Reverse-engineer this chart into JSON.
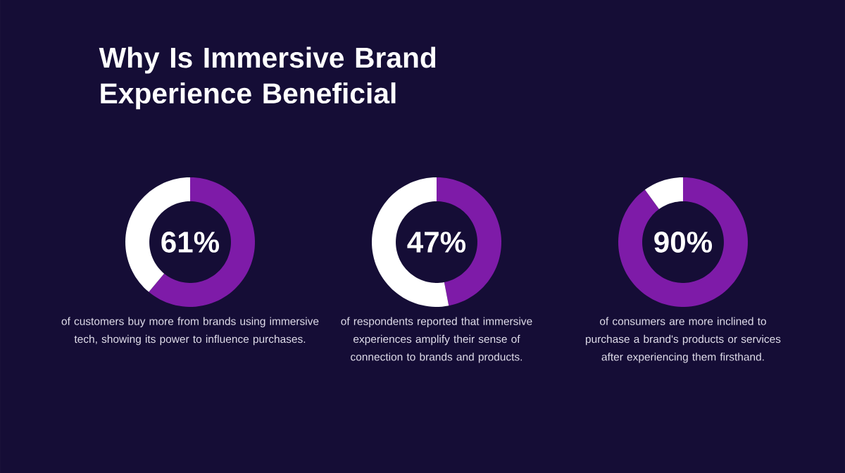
{
  "chart_data": [
    {
      "type": "donut",
      "title": "Why Is Immersive Brand Experience Beneficial",
      "categories": [
        null,
        null
      ],
      "values": [
        61,
        39
      ],
      "colors": [
        "#7e1ba8",
        "#ffffff"
      ],
      "annotations": [
        "61%",
        "of customers buy more from brands using immersive tech, showing its power to influence purchases."
      ]
    },
    {
      "type": "donut",
      "categories": [
        null,
        null
      ],
      "values": [
        47,
        53
      ],
      "colors": [
        "#7e1ba8",
        "#ffffff"
      ],
      "annotations": [
        "47%",
        "of respondents reported that immersive experiences amplify their sense of connection to brands and products."
      ]
    },
    {
      "type": "donut",
      "categories": [
        null,
        null
      ],
      "values": [
        90,
        10
      ],
      "colors": [
        "#7e1ba8",
        "#ffffff"
      ],
      "annotations": [
        "90%",
        "of consumers are more inclined to purchase a brand's products or services after experiencing them firsthand."
      ]
    }
  ]
}
